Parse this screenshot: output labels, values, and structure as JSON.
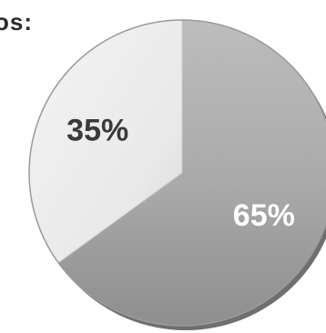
{
  "title_fragment": "os:",
  "chart_data": {
    "type": "pie",
    "title": "os:",
    "values": [
      65,
      35
    ],
    "labels": [
      "65%",
      "35%"
    ],
    "start_angle_deg": 0,
    "colors": [
      "#a8a8a8",
      "#ececec"
    ],
    "label_colors": [
      "#ffffff",
      "#3a3a3a"
    ]
  }
}
